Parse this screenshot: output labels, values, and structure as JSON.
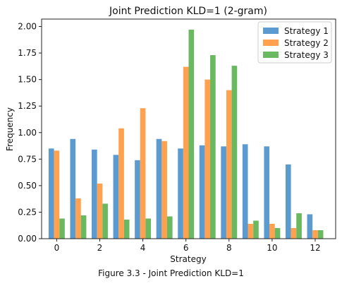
{
  "chart_data": {
    "type": "bar",
    "title": "Joint Prediction KLD=1 (2-gram)",
    "xlabel": "Strategy",
    "ylabel": "Frequency",
    "x": [
      0,
      1,
      2,
      3,
      4,
      5,
      6,
      7,
      8,
      9,
      10,
      11,
      12
    ],
    "xticks": [
      "0",
      "2",
      "4",
      "6",
      "8",
      "10",
      "12"
    ],
    "xtick_values": [
      0,
      2,
      4,
      6,
      8,
      10,
      12
    ],
    "yticks": [
      "0.00",
      "0.25",
      "0.50",
      "0.75",
      "1.00",
      "1.25",
      "1.50",
      "1.75",
      "2.00"
    ],
    "ytick_values": [
      0,
      0.25,
      0.5,
      0.75,
      1.0,
      1.25,
      1.5,
      1.75,
      2.0
    ],
    "xlim": [
      -0.7,
      12.95
    ],
    "ylim": [
      0,
      2.07
    ],
    "grid": false,
    "legend_position": "top-right",
    "series": [
      {
        "name": "Strategy 1",
        "color": "#5b9bd0",
        "values": [
          0.85,
          0.94,
          0.84,
          0.79,
          0.74,
          0.94,
          0.85,
          0.88,
          0.87,
          0.89,
          0.87,
          0.7,
          0.23
        ]
      },
      {
        "name": "Strategy 2",
        "color": "#ffa14e",
        "values": [
          0.83,
          0.38,
          0.52,
          1.04,
          1.23,
          0.92,
          1.62,
          1.5,
          1.4,
          0.14,
          0.14,
          0.1,
          0.08
        ]
      },
      {
        "name": "Strategy 3",
        "color": "#6ab961",
        "values": [
          0.19,
          0.22,
          0.33,
          0.18,
          0.19,
          0.21,
          1.97,
          1.73,
          1.63,
          0.17,
          0.1,
          0.24,
          0.08
        ]
      }
    ]
  },
  "caption": "Figure 3.3 - Joint Prediction KLD=1"
}
